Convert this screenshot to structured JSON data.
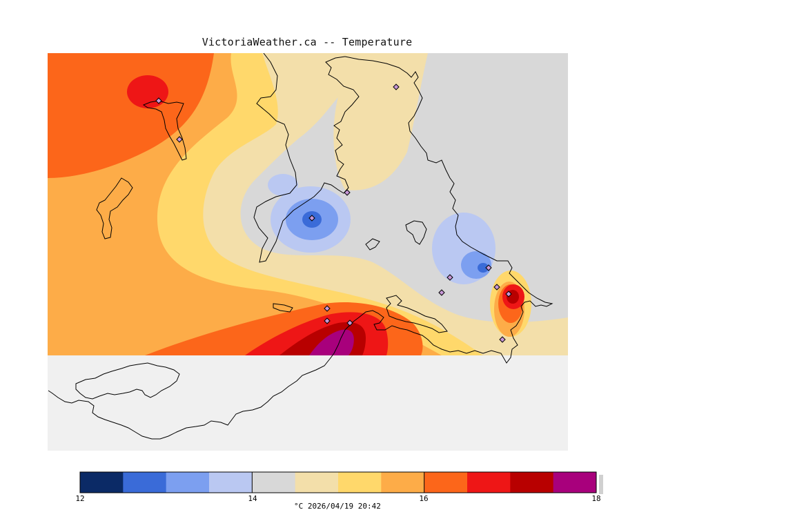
{
  "title": "VictoriaWeather.ca -- Temperature",
  "caption": "°C  2026/04/19 20:42",
  "colorbar": {
    "tick_labels": [
      "12",
      "14",
      "16",
      "18"
    ],
    "min": 12,
    "max": 18,
    "band_colors": [
      "#0b2a66",
      "#3a6bd8",
      "#7c9ff0",
      "#bac8f2",
      "#d8d8d8",
      "#f3dfaa",
      "#ffd86b",
      "#fdac48",
      "#fc661a",
      "#ee1616",
      "#b80000",
      "#a8007c"
    ]
  },
  "map": {
    "land_color": "#f0f0f0",
    "stations_count_hint": "purple diamond station markers"
  }
}
